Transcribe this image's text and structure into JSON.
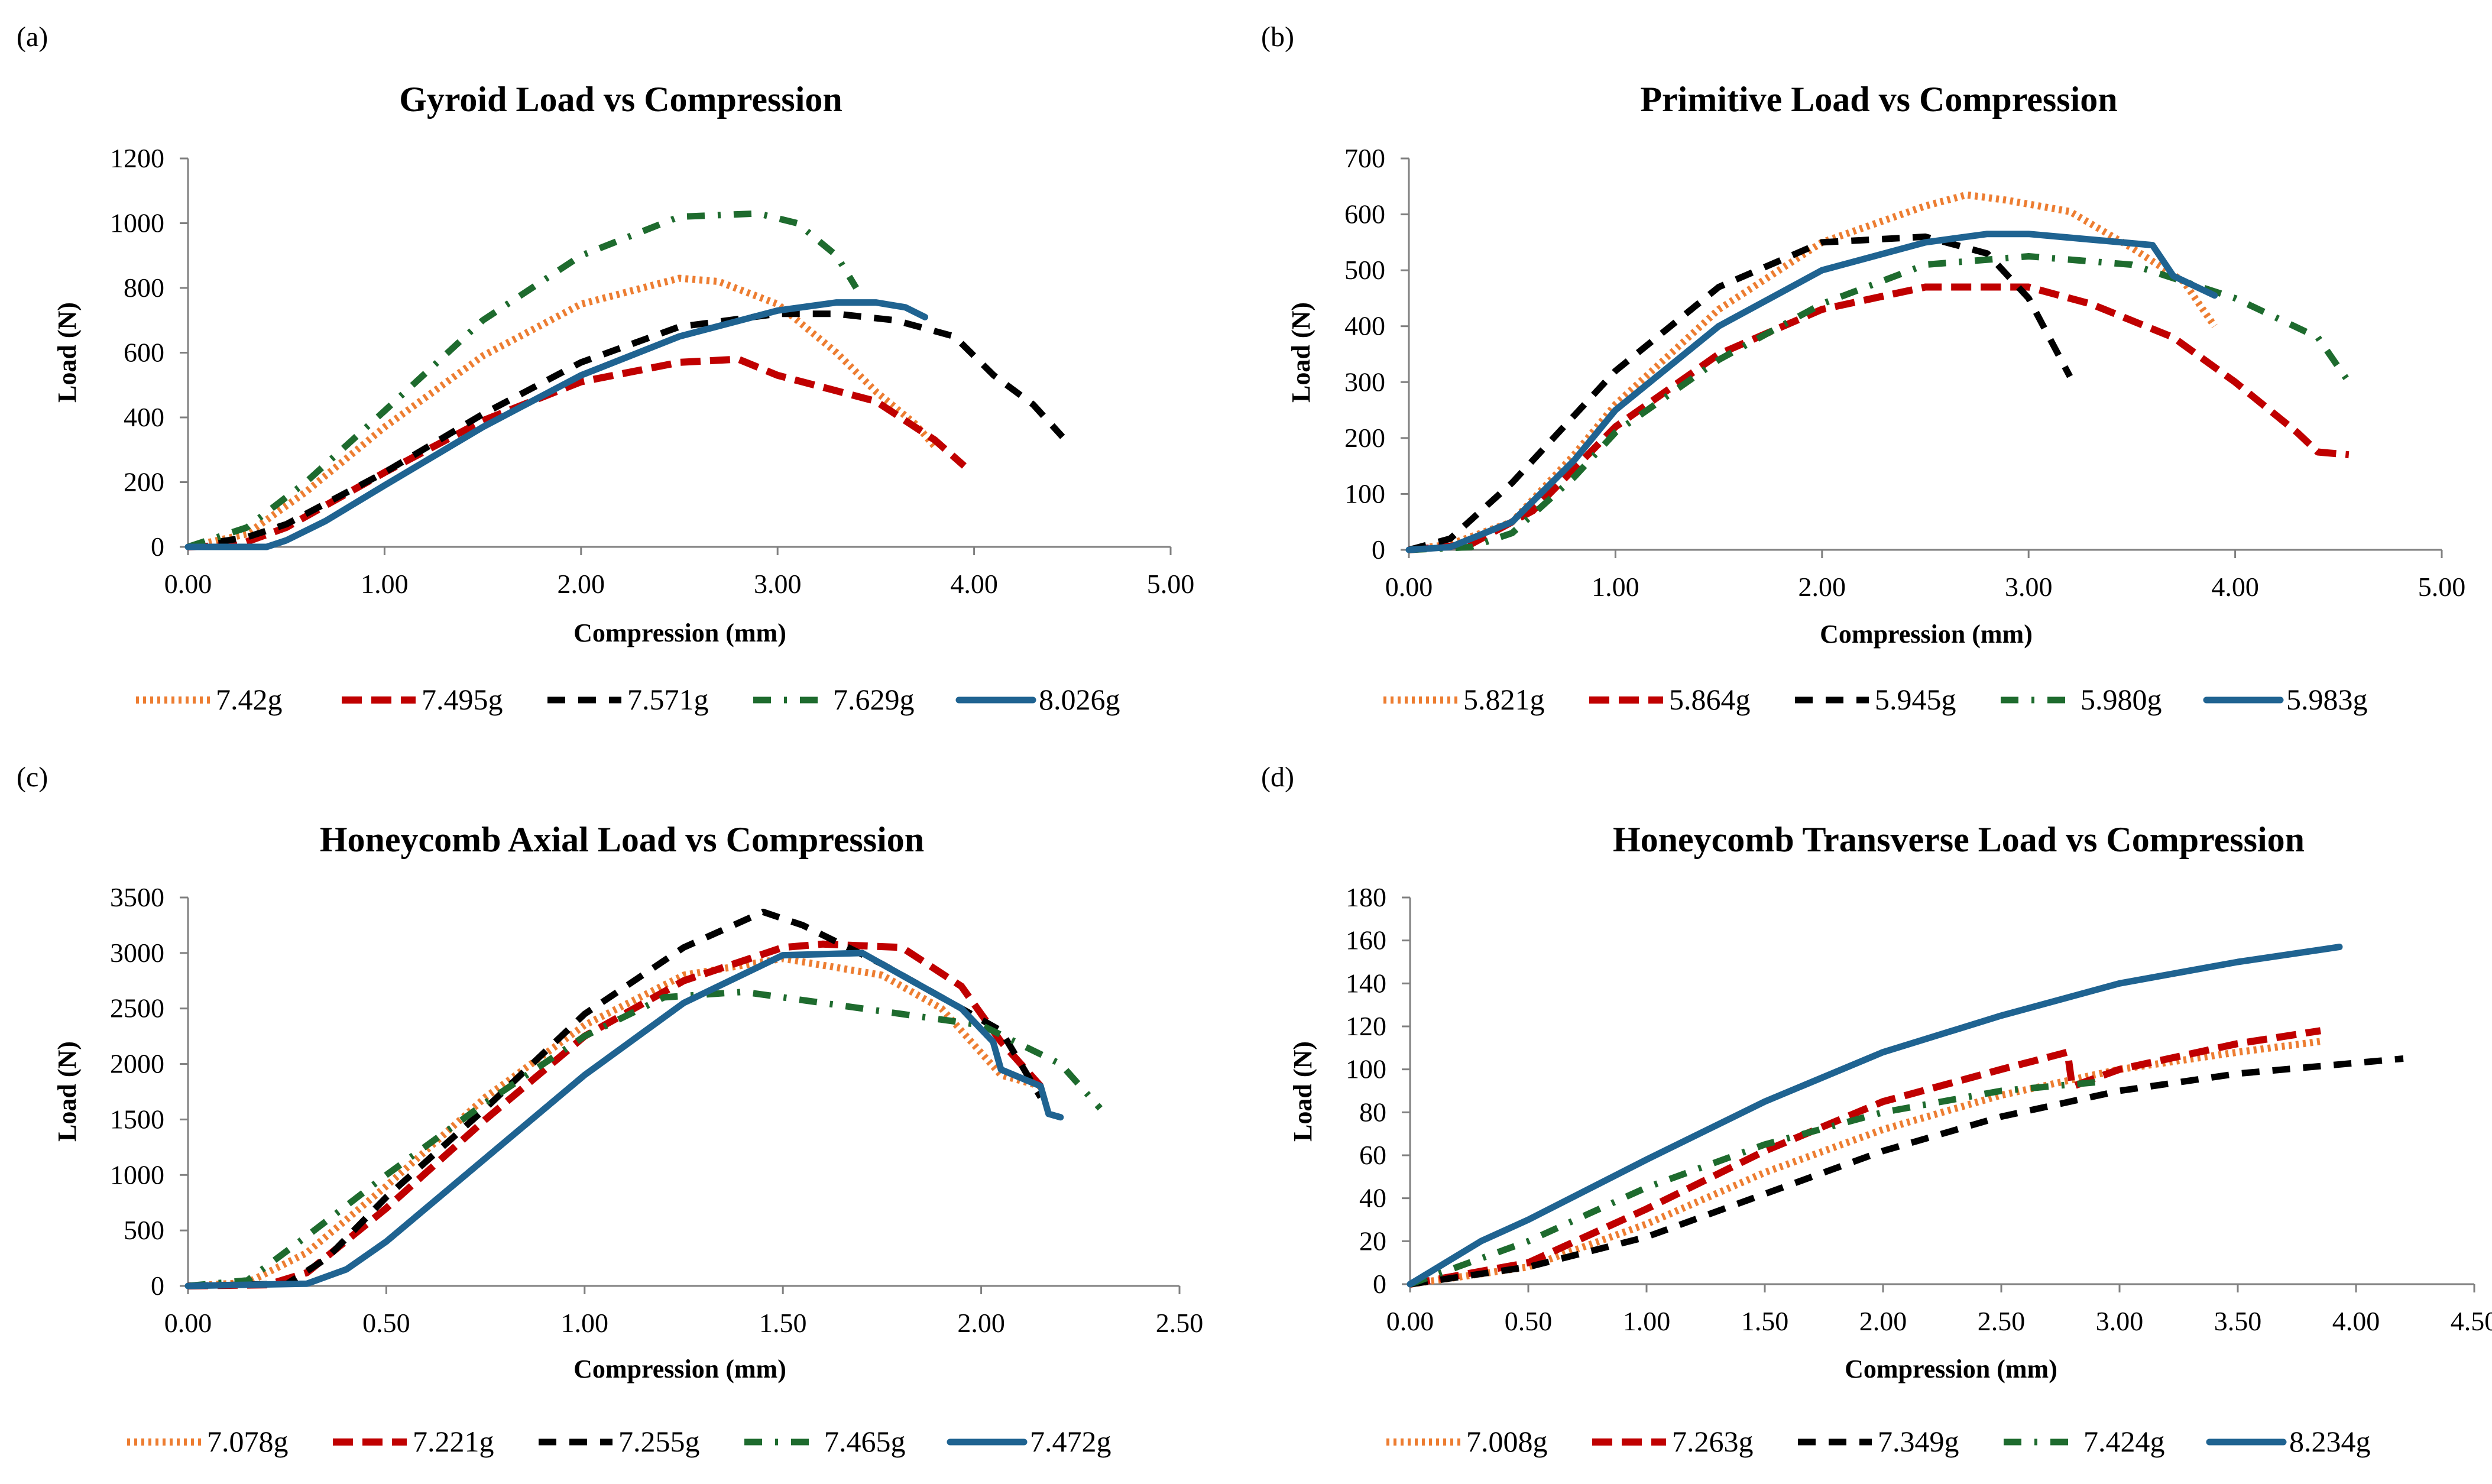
{
  "colors": {
    "orange": "#ED7D31",
    "red": "#C00000",
    "black": "#000000",
    "green": "#1E6B2E",
    "blue": "#1F6391"
  },
  "chart_data": [
    {
      "panel": "(a)",
      "type": "line",
      "title": "Gyroid Load vs Compression",
      "xlabel": "Compression (mm)",
      "ylabel": "Load (N)",
      "xlim": [
        0,
        5
      ],
      "ylim": [
        0,
        1200
      ],
      "xticks": [
        "0.00",
        "1.00",
        "2.00",
        "3.00",
        "4.00",
        "5.00"
      ],
      "yticks": [
        "0",
        "200",
        "400",
        "600",
        "800",
        "1000",
        "1200"
      ],
      "legend_position": "bottom",
      "series": [
        {
          "name": "7.42g",
          "style": "dotted",
          "color": "orange",
          "x": [
            0,
            0.3,
            0.6,
            1.0,
            1.5,
            2.0,
            2.5,
            2.7,
            3.0,
            3.3,
            3.5,
            3.7,
            3.8
          ],
          "y": [
            0,
            40,
            170,
            370,
            590,
            750,
            830,
            820,
            750,
            600,
            480,
            380,
            310
          ]
        },
        {
          "name": "7.495g",
          "style": "dashed",
          "color": "red",
          "x": [
            0,
            0.25,
            0.5,
            1.0,
            1.5,
            2.0,
            2.5,
            2.8,
            3.0,
            3.5,
            3.8,
            3.95
          ],
          "y": [
            0,
            5,
            60,
            230,
            390,
            510,
            570,
            580,
            530,
            450,
            330,
            250
          ]
        },
        {
          "name": "7.571g",
          "style": "longdash",
          "color": "black",
          "x": [
            0,
            0.3,
            0.5,
            1.0,
            1.5,
            2.0,
            2.5,
            3.0,
            3.3,
            3.6,
            3.9,
            4.1,
            4.3,
            4.45
          ],
          "y": [
            0,
            30,
            70,
            230,
            410,
            570,
            680,
            720,
            720,
            700,
            650,
            530,
            440,
            340
          ]
        },
        {
          "name": "7.629g",
          "style": "dashdot",
          "color": "green",
          "x": [
            0,
            0.3,
            0.6,
            1.0,
            1.5,
            2.0,
            2.5,
            2.9,
            3.1,
            3.3,
            3.4
          ],
          "y": [
            0,
            60,
            200,
            420,
            700,
            900,
            1020,
            1030,
            1000,
            900,
            800
          ]
        },
        {
          "name": "8.026g",
          "style": "solid",
          "color": "blue",
          "x": [
            0,
            0.4,
            0.5,
            0.7,
            1.0,
            1.5,
            2.0,
            2.5,
            3.0,
            3.3,
            3.5,
            3.65,
            3.75
          ],
          "y": [
            0,
            0,
            20,
            80,
            190,
            370,
            530,
            650,
            730,
            755,
            755,
            740,
            710
          ]
        }
      ]
    },
    {
      "panel": "(b)",
      "type": "line",
      "title": "Primitive Load vs Compression",
      "xlabel": "Compression (mm)",
      "ylabel": "Load  (N)",
      "xlim": [
        0,
        5
      ],
      "ylim": [
        0,
        700
      ],
      "xticks": [
        "0.00",
        "1.00",
        "2.00",
        "3.00",
        "4.00",
        "5.00"
      ],
      "yticks": [
        "0",
        "100",
        "200",
        "300",
        "400",
        "500",
        "600",
        "700"
      ],
      "legend_position": "bottom",
      "series": [
        {
          "name": "5.821g",
          "style": "dotted",
          "color": "orange",
          "x": [
            0,
            0.2,
            0.5,
            0.8,
            1.0,
            1.5,
            2.0,
            2.5,
            2.7,
            2.9,
            3.2,
            3.5,
            3.75,
            3.9
          ],
          "y": [
            0,
            10,
            50,
            170,
            260,
            430,
            550,
            615,
            635,
            625,
            605,
            540,
            480,
            400
          ]
        },
        {
          "name": "5.864g",
          "style": "dashed",
          "color": "red",
          "x": [
            0,
            0.3,
            0.6,
            1.0,
            1.5,
            2.0,
            2.5,
            3.0,
            3.3,
            3.7,
            4.0,
            4.3,
            4.4,
            4.55
          ],
          "y": [
            0,
            10,
            70,
            220,
            350,
            430,
            470,
            470,
            440,
            380,
            300,
            210,
            175,
            170
          ]
        },
        {
          "name": "5.945g",
          "style": "longdash",
          "color": "black",
          "x": [
            0,
            0.2,
            0.5,
            0.8,
            1.0,
            1.5,
            2.0,
            2.5,
            2.8,
            3.0,
            3.1,
            3.2
          ],
          "y": [
            0,
            20,
            120,
            240,
            320,
            470,
            550,
            560,
            530,
            450,
            380,
            310
          ]
        },
        {
          "name": "5.980g",
          "style": "dashdot",
          "color": "green",
          "x": [
            0,
            0.3,
            0.5,
            0.8,
            1.0,
            1.5,
            2.0,
            2.5,
            3.0,
            3.5,
            4.0,
            4.4,
            4.55
          ],
          "y": [
            0,
            5,
            30,
            130,
            210,
            340,
            440,
            510,
            525,
            510,
            450,
            380,
            300
          ]
        },
        {
          "name": "5.983g",
          "style": "solid",
          "color": "blue",
          "x": [
            0,
            0.2,
            0.5,
            0.8,
            1.0,
            1.5,
            2.0,
            2.5,
            2.8,
            3.0,
            3.3,
            3.6,
            3.7,
            3.9
          ],
          "y": [
            0,
            5,
            50,
            160,
            250,
            400,
            500,
            550,
            565,
            565,
            555,
            545,
            490,
            455
          ]
        }
      ]
    },
    {
      "panel": "(c)",
      "type": "line",
      "title": "Honeycomb Axial Load vs Compression",
      "xlabel": "Compression (mm)",
      "ylabel": "Load (N)",
      "xlim": [
        0,
        2.5
      ],
      "ylim": [
        0,
        3500
      ],
      "xticks": [
        "0.00",
        "0.50",
        "1.00",
        "1.50",
        "2.00",
        "2.50"
      ],
      "yticks": [
        "0",
        "500",
        "1000",
        "1500",
        "2000",
        "2500",
        "3000",
        "3500"
      ],
      "legend_position": "bottom",
      "series": [
        {
          "name": "7.078g",
          "style": "dotted",
          "color": "orange",
          "x": [
            0,
            0.15,
            0.3,
            0.5,
            0.75,
            1.0,
            1.25,
            1.5,
            1.75,
            1.9,
            2.05,
            2.15
          ],
          "y": [
            0,
            30,
            300,
            900,
            1700,
            2350,
            2800,
            2950,
            2800,
            2500,
            1900,
            1800
          ]
        },
        {
          "name": "7.221g",
          "style": "dashed",
          "color": "red",
          "x": [
            0,
            0.2,
            0.3,
            0.5,
            0.75,
            1.0,
            1.25,
            1.5,
            1.6,
            1.8,
            1.95,
            2.05,
            2.15
          ],
          "y": [
            0,
            10,
            120,
            700,
            1500,
            2250,
            2750,
            3050,
            3080,
            3050,
            2700,
            2200,
            1800
          ]
        },
        {
          "name": "7.255g",
          "style": "longdash",
          "color": "black",
          "x": [
            0,
            0.25,
            0.35,
            0.5,
            0.75,
            1.0,
            1.25,
            1.45,
            1.55,
            1.75,
            1.9,
            2.05,
            2.15
          ],
          "y": [
            0,
            20,
            250,
            800,
            1600,
            2450,
            3050,
            3370,
            3250,
            2900,
            2600,
            2300,
            1700
          ]
        },
        {
          "name": "7.465g",
          "style": "dashdot",
          "color": "green",
          "x": [
            0,
            0.15,
            0.3,
            0.5,
            0.75,
            1.0,
            1.2,
            1.4,
            1.6,
            1.8,
            2.0,
            2.2,
            2.3
          ],
          "y": [
            0,
            50,
            450,
            1000,
            1650,
            2250,
            2600,
            2650,
            2550,
            2450,
            2350,
            2000,
            1600
          ]
        },
        {
          "name": "7.472g",
          "style": "solid",
          "color": "blue",
          "x": [
            0,
            0.3,
            0.4,
            0.5,
            0.75,
            1.0,
            1.25,
            1.5,
            1.7,
            1.85,
            1.95,
            2.03,
            2.05,
            2.15,
            2.17,
            2.2
          ],
          "y": [
            0,
            20,
            150,
            400,
            1150,
            1900,
            2550,
            2980,
            3000,
            2700,
            2500,
            2200,
            1950,
            1800,
            1550,
            1520
          ]
        }
      ]
    },
    {
      "panel": "(d)",
      "type": "line",
      "title": "Honeycomb Transverse Load vs Compression",
      "xlabel": "Compression (mm)",
      "ylabel": "Load (N)",
      "xlim": [
        0,
        4.5
      ],
      "ylim": [
        0,
        180
      ],
      "xticks": [
        "0.00",
        "0.50",
        "1.00",
        "1.50",
        "2.00",
        "2.50",
        "3.00",
        "3.50",
        "4.00",
        "4.50"
      ],
      "yticks": [
        "0",
        "20",
        "40",
        "60",
        "80",
        "100",
        "120",
        "140",
        "160",
        "180"
      ],
      "legend_position": "bottom",
      "series": [
        {
          "name": "7.008g",
          "style": "dotted",
          "color": "orange",
          "x": [
            0,
            0.5,
            1.0,
            1.5,
            2.0,
            2.5,
            3.0,
            3.5,
            3.85
          ],
          "y": [
            0,
            8,
            28,
            52,
            72,
            88,
            100,
            108,
            113
          ]
        },
        {
          "name": "7.263g",
          "style": "dashed",
          "color": "red",
          "x": [
            0,
            0.5,
            1.0,
            1.5,
            2.0,
            2.5,
            2.78,
            2.8,
            3.0,
            3.5,
            3.85
          ],
          "y": [
            0,
            10,
            35,
            62,
            85,
            100,
            108,
            92,
            100,
            112,
            118
          ]
        },
        {
          "name": "7.349g",
          "style": "longdash",
          "color": "black",
          "x": [
            0,
            0.5,
            1.0,
            1.5,
            2.0,
            2.5,
            3.0,
            3.5,
            4.0,
            4.2
          ],
          "y": [
            0,
            8,
            22,
            42,
            62,
            78,
            90,
            98,
            103,
            105
          ]
        },
        {
          "name": "7.424g",
          "style": "dashdot",
          "color": "green",
          "x": [
            0,
            0.5,
            1.0,
            1.5,
            2.0,
            2.5,
            2.9
          ],
          "y": [
            0,
            20,
            45,
            65,
            80,
            90,
            94
          ]
        },
        {
          "name": "8.234g",
          "style": "solid",
          "color": "blue",
          "x": [
            0,
            0.3,
            0.5,
            1.0,
            1.5,
            2.0,
            2.5,
            3.0,
            3.5,
            3.93
          ],
          "y": [
            0,
            20,
            30,
            58,
            85,
            108,
            125,
            140,
            150,
            157
          ]
        }
      ]
    }
  ]
}
